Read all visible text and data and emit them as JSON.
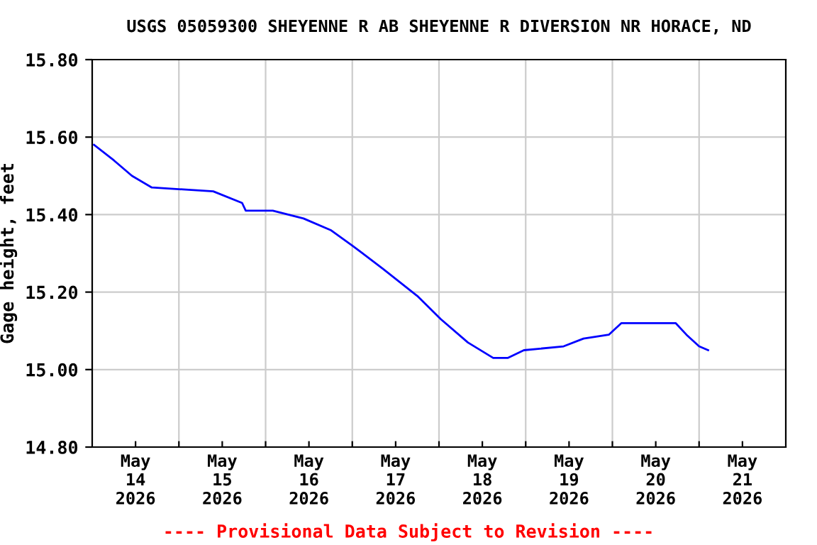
{
  "chart_data": {
    "type": "line",
    "title": "USGS 05059300 SHEYENNE R AB SHEYENNE R DIVERSION NR HORACE, ND",
    "ylabel": "Gage height, feet",
    "annotations": [
      "---- Provisional Data Subject to Revision ----"
    ],
    "x": [
      "2026-05-14T00:30",
      "2026-05-14T06:00",
      "2026-05-14T11:00",
      "2026-05-14T16:30",
      "2026-05-15T09:30",
      "2026-05-15T17:30",
      "2026-05-15T18:30",
      "2026-05-16T02:00",
      "2026-05-16T10:30",
      "2026-05-16T18:00",
      "2026-05-17T00:00",
      "2026-05-17T08:30",
      "2026-05-17T18:00",
      "2026-05-18T00:30",
      "2026-05-18T08:00",
      "2026-05-18T15:00",
      "2026-05-18T19:00",
      "2026-05-18T23:30",
      "2026-05-19T10:30",
      "2026-05-19T16:00",
      "2026-05-19T23:00",
      "2026-05-20T02:30",
      "2026-05-20T07:30",
      "2026-05-20T17:30",
      "2026-05-20T20:30",
      "2026-05-21T00:00",
      "2026-05-21T02:30"
    ],
    "series": [
      {
        "color": "#0000ff",
        "values": [
          15.58,
          15.54,
          15.5,
          15.47,
          15.46,
          15.43,
          15.41,
          15.41,
          15.39,
          15.36,
          15.32,
          15.26,
          15.19,
          15.13,
          15.07,
          15.03,
          15.03,
          15.05,
          15.06,
          15.08,
          15.09,
          15.12,
          15.12,
          15.12,
          15.09,
          15.06,
          15.05
        ]
      }
    ],
    "xlim": [
      "2026-05-14T00:00",
      "2026-05-22T00:00"
    ],
    "xticks": [
      {
        "value": "2026-05-14T12:00",
        "label": "May\n14\n2026"
      },
      {
        "value": "2026-05-15T12:00",
        "label": "May\n15\n2026"
      },
      {
        "value": "2026-05-16T12:00",
        "label": "May\n16\n2026"
      },
      {
        "value": "2026-05-17T12:00",
        "label": "May\n17\n2026"
      },
      {
        "value": "2026-05-18T12:00",
        "label": "May\n18\n2026"
      },
      {
        "value": "2026-05-19T12:00",
        "label": "May\n19\n2026"
      },
      {
        "value": "2026-05-20T12:00",
        "label": "May\n20\n2026"
      },
      {
        "value": "2026-05-21T12:00",
        "label": "May\n21\n2026"
      },
      {
        "value": "2026-05-15T00:00",
        "label": null
      },
      {
        "value": "2026-05-16T00:00",
        "label": null
      },
      {
        "value": "2026-05-17T00:00",
        "label": null
      },
      {
        "value": "2026-05-18T00:00",
        "label": null
      },
      {
        "value": "2026-05-19T00:00",
        "label": null
      },
      {
        "value": "2026-05-20T00:00",
        "label": null
      },
      {
        "value": "2026-05-21T00:00",
        "label": null
      }
    ],
    "ylim": [
      14.8,
      15.8
    ],
    "yticks": [
      {
        "value": 14.8,
        "label": "14.80"
      },
      {
        "value": 15.0,
        "label": "15.00"
      },
      {
        "value": 15.2,
        "label": "15.20"
      },
      {
        "value": 15.4,
        "label": "15.40"
      },
      {
        "value": 15.6,
        "label": "15.60"
      },
      {
        "value": 15.8,
        "label": "15.80"
      }
    ],
    "grid": true,
    "line_style": "solid",
    "marker": "none"
  }
}
